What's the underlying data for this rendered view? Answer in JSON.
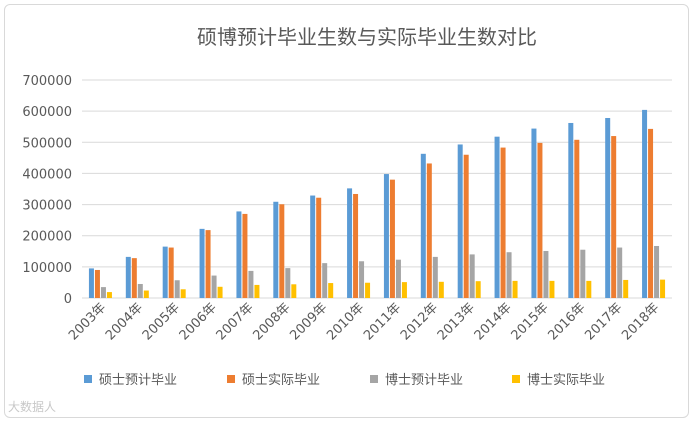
{
  "chart_data": {
    "type": "bar",
    "title": "硕博预计毕业生数与实际毕业生数对比",
    "xlabel": "",
    "ylabel": "",
    "ylim": [
      0,
      700000
    ],
    "yticks": [
      0,
      100000,
      200000,
      300000,
      400000,
      500000,
      600000,
      700000
    ],
    "ytick_labels": [
      "0",
      "100000",
      "200000",
      "300000",
      "400000",
      "500000",
      "600000",
      "700000"
    ],
    "grid": true,
    "legend_position": "bottom",
    "categories": [
      "2003年",
      "2004年",
      "2005年",
      "2006年",
      "2007年",
      "2008年",
      "2009年",
      "2010年",
      "2011年",
      "2012年",
      "2013年",
      "2014年",
      "2015年",
      "2016年",
      "2017年",
      "2018年"
    ],
    "series": [
      {
        "name": "硕士预计毕业",
        "color": "#5b9bd5",
        "values": [
          95000,
          132000,
          165000,
          222000,
          278000,
          309000,
          329000,
          352000,
          398000,
          463000,
          493000,
          518000,
          544000,
          562000,
          578000,
          604000
        ]
      },
      {
        "name": "硕士实际毕业",
        "color": "#ed7d31",
        "values": [
          90000,
          128000,
          162000,
          218000,
          270000,
          301000,
          322000,
          334000,
          380000,
          432000,
          460000,
          483000,
          498000,
          508000,
          520000,
          543000
        ]
      },
      {
        "name": "博士预计毕业",
        "color": "#a5a5a5",
        "values": [
          35000,
          45000,
          57000,
          72000,
          87000,
          96000,
          112000,
          118000,
          123000,
          132000,
          140000,
          147000,
          151000,
          155000,
          162000,
          167000
        ]
      },
      {
        "name": "博士实际毕业",
        "color": "#ffc000",
        "values": [
          19000,
          24000,
          28000,
          36000,
          42000,
          44000,
          48000,
          49000,
          51000,
          52000,
          54000,
          55000,
          55000,
          55000,
          58000,
          59000
        ]
      }
    ]
  },
  "watermark": "大数据人"
}
